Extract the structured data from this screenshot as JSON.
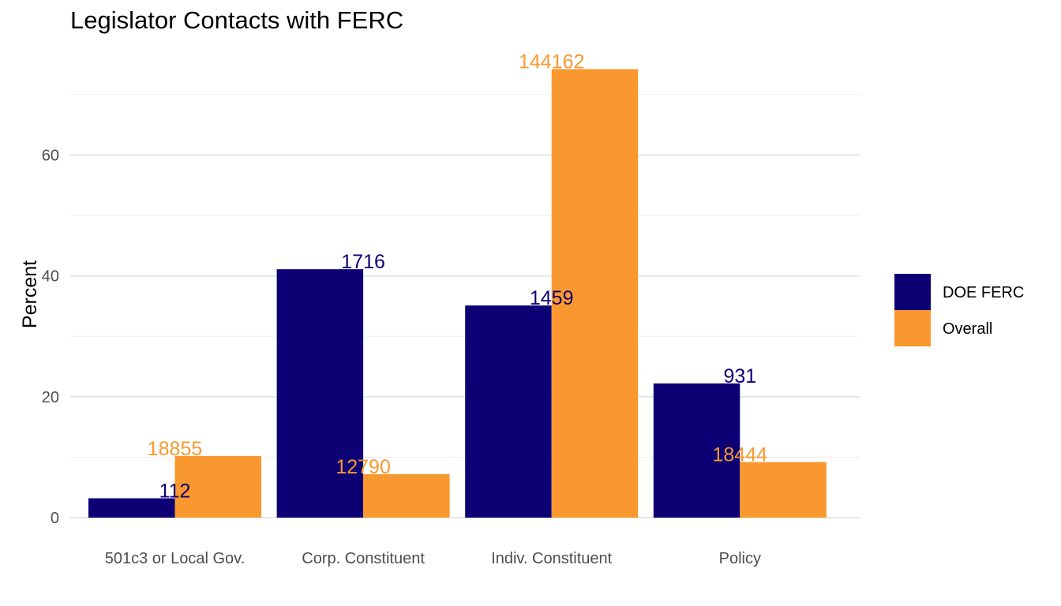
{
  "chart_data": {
    "type": "bar",
    "title": "Legislator Contacts with FERC",
    "xlabel": "",
    "ylabel": "Percent",
    "ylim": [
      0,
      75
    ],
    "yticks": [
      0,
      20,
      40,
      60
    ],
    "grid": true,
    "legend_position": "right",
    "categories": [
      "501c3 or Local Gov.",
      "Corp. Constituent",
      "Indiv. Constituent",
      "Policy"
    ],
    "series": [
      {
        "name": "DOE FERC",
        "color": "#0d0075",
        "values": [
          3.2,
          41.1,
          35.1,
          22.2
        ],
        "labels": [
          "112",
          "1716",
          "1459",
          "931"
        ]
      },
      {
        "name": "Overall",
        "color": "#f9982f",
        "values": [
          10.2,
          7.2,
          74.2,
          9.2
        ],
        "labels": [
          "18855",
          "12790",
          "144162",
          "18444"
        ]
      }
    ]
  }
}
